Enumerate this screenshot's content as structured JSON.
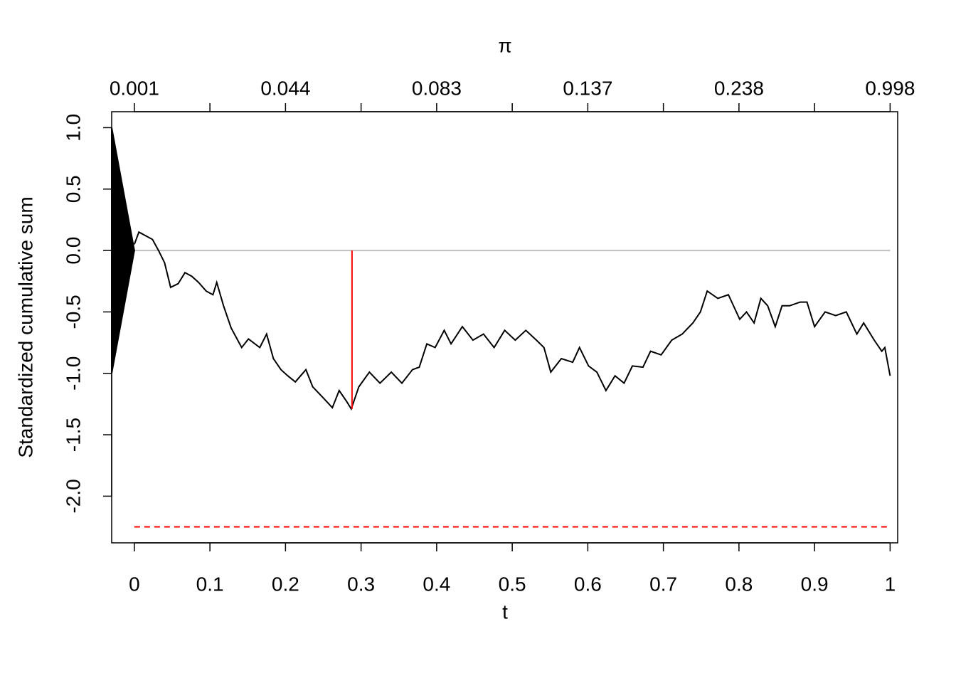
{
  "chart_data": {
    "type": "line",
    "xlabel": "t",
    "ylabel": "Standardized cumulative sum",
    "x2label": "π",
    "xlim": [
      -0.03,
      1.01
    ],
    "ylim": [
      -2.38,
      1.13
    ],
    "xticks": [
      0,
      0.1,
      0.2,
      0.3,
      0.4,
      0.5,
      0.6,
      0.7,
      0.8,
      0.9,
      1
    ],
    "yticks": [
      {
        "value": 1,
        "label": "1.0"
      },
      0.5,
      {
        "value": 0,
        "label": "0.0"
      },
      -0.5,
      {
        "value": -1,
        "label": "-1.0"
      },
      -1.5,
      {
        "value": -2,
        "label": "-2.0"
      }
    ],
    "x2ticks": [
      {
        "value": 0,
        "label": "0.001"
      },
      {
        "value": 0.2,
        "label": "0.044"
      },
      {
        "value": 0.4,
        "label": "0.083"
      },
      {
        "value": 0.6,
        "label": "0.137"
      },
      {
        "value": 0.8,
        "label": "0.238"
      },
      {
        "value": 1,
        "label": "0.998"
      }
    ],
    "x2minor": [
      0.1,
      0.3,
      0.5,
      0.7,
      0.9
    ],
    "series": [
      {
        "color": "#bebebe",
        "x": [
          0,
          1
        ],
        "values": [
          0,
          0
        ]
      },
      {
        "color": "#000000",
        "fill": "#000000",
        "x": [
          -0.03,
          0,
          -0.03
        ],
        "values": [
          1,
          0,
          -1
        ]
      },
      {
        "color": "#000000",
        "x": [
          0,
          0.006,
          0.015,
          0.024,
          0.032,
          0.04,
          0.048,
          0.058,
          0.067,
          0.076,
          0.085,
          0.095,
          0.104,
          0.109,
          0.118,
          0.128,
          0.142,
          0.151,
          0.166,
          0.175,
          0.184,
          0.194,
          0.203,
          0.213,
          0.227,
          0.236,
          0.25,
          0.262,
          0.271,
          0.281,
          0.287,
          0.297,
          0.311,
          0.325,
          0.34,
          0.354,
          0.368,
          0.377,
          0.387,
          0.398,
          0.41,
          0.419,
          0.434,
          0.448,
          0.462,
          0.476,
          0.49,
          0.504,
          0.518,
          0.532,
          0.542,
          0.551,
          0.565,
          0.58,
          0.589,
          0.601,
          0.612,
          0.624,
          0.636,
          0.648,
          0.659,
          0.673,
          0.683,
          0.697,
          0.711,
          0.725,
          0.739,
          0.749,
          0.758,
          0.772,
          0.786,
          0.801,
          0.81,
          0.82,
          0.829,
          0.838,
          0.848,
          0.857,
          0.867,
          0.881,
          0.89,
          0.9,
          0.914,
          0.928,
          0.942,
          0.956,
          0.965,
          0.979,
          0.989,
          0.993,
          1
        ],
        "values": [
          0.05,
          0.15,
          0.12,
          0.09,
          0,
          -0.1,
          -0.3,
          -0.27,
          -0.18,
          -0.21,
          -0.26,
          -0.33,
          -0.36,
          -0.26,
          -0.45,
          -0.63,
          -0.79,
          -0.72,
          -0.79,
          -0.68,
          -0.88,
          -0.97,
          -1.02,
          -1.07,
          -0.97,
          -1.11,
          -1.2,
          -1.28,
          -1.14,
          -1.23,
          -1.29,
          -1.11,
          -0.99,
          -1.08,
          -0.99,
          -1.08,
          -0.97,
          -0.95,
          -0.76,
          -0.79,
          -0.65,
          -0.76,
          -0.62,
          -0.73,
          -0.68,
          -0.79,
          -0.65,
          -0.73,
          -0.65,
          -0.73,
          -0.79,
          -0.99,
          -0.88,
          -0.91,
          -0.79,
          -0.94,
          -0.99,
          -1.14,
          -1.02,
          -1.08,
          -0.94,
          -0.95,
          -0.82,
          -0.85,
          -0.73,
          -0.68,
          -0.59,
          -0.5,
          -0.33,
          -0.39,
          -0.36,
          -0.56,
          -0.5,
          -0.59,
          -0.39,
          -0.45,
          -0.62,
          -0.45,
          -0.45,
          -0.42,
          -0.42,
          -0.62,
          -0.5,
          -0.53,
          -0.5,
          -0.68,
          -0.59,
          -0.73,
          -0.82,
          -0.79,
          -1.02
        ]
      },
      {
        "color": "#ff0000",
        "x": [
          0.288,
          0.288
        ],
        "values": [
          0,
          -1.29
        ]
      },
      {
        "color": "#ff0000",
        "dashed": true,
        "x": [
          0,
          1
        ],
        "values": [
          -2.25,
          -2.25
        ]
      }
    ]
  }
}
